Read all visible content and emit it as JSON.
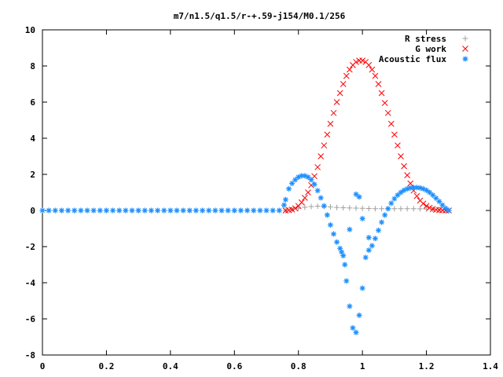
{
  "chart_data": {
    "type": "scatter",
    "title": "m7/n1.5/q1.5/r-+.59-j154/M0.1/256",
    "xlabel": "",
    "ylabel": "",
    "xlim": [
      0,
      1.4
    ],
    "ylim": [
      -8,
      10
    ],
    "xticks": [
      "0",
      "0.2",
      "0.4",
      "0.6",
      "0.8",
      "1",
      "1.2",
      "1.4"
    ],
    "yticks": [
      "-8",
      "-6",
      "-4",
      "-2",
      "0",
      "2",
      "4",
      "6",
      "8",
      "10"
    ],
    "grid": false,
    "legend_position": "top-right",
    "series": [
      {
        "name": "R stress",
        "marker": "+",
        "color": "#a0a0a0",
        "points": [
          [
            0.0,
            0
          ],
          [
            0.1,
            0
          ],
          [
            0.2,
            0
          ],
          [
            0.3,
            0
          ],
          [
            0.4,
            0
          ],
          [
            0.5,
            0
          ],
          [
            0.6,
            0
          ],
          [
            0.7,
            0
          ],
          [
            0.76,
            0
          ],
          [
            0.78,
            0.05
          ],
          [
            0.8,
            0.12
          ],
          [
            0.82,
            0.18
          ],
          [
            0.84,
            0.22
          ],
          [
            0.86,
            0.24
          ],
          [
            0.88,
            0.23
          ],
          [
            0.9,
            0.2
          ],
          [
            0.92,
            0.17
          ],
          [
            0.94,
            0.15
          ],
          [
            0.96,
            0.14
          ],
          [
            0.98,
            0.13
          ],
          [
            1.0,
            0.12
          ],
          [
            1.02,
            0.11
          ],
          [
            1.04,
            0.1
          ],
          [
            1.06,
            0.1
          ],
          [
            1.08,
            0.1
          ],
          [
            1.1,
            0.1
          ],
          [
            1.12,
            0.1
          ],
          [
            1.14,
            0.1
          ],
          [
            1.16,
            0.1
          ],
          [
            1.18,
            0.09
          ],
          [
            1.2,
            0.08
          ],
          [
            1.22,
            0.06
          ],
          [
            1.24,
            0.04
          ],
          [
            1.26,
            0.02
          ],
          [
            1.27,
            0
          ]
        ]
      },
      {
        "name": "G work",
        "marker": "x",
        "color": "#ff0000",
        "points": [
          [
            0.76,
            0
          ],
          [
            0.77,
            0.02
          ],
          [
            0.78,
            0.05
          ],
          [
            0.79,
            0.12
          ],
          [
            0.8,
            0.25
          ],
          [
            0.81,
            0.45
          ],
          [
            0.82,
            0.7
          ],
          [
            0.83,
            1.0
          ],
          [
            0.84,
            1.4
          ],
          [
            0.85,
            1.9
          ],
          [
            0.86,
            2.4
          ],
          [
            0.87,
            3.0
          ],
          [
            0.88,
            3.6
          ],
          [
            0.89,
            4.2
          ],
          [
            0.9,
            4.8
          ],
          [
            0.91,
            5.4
          ],
          [
            0.92,
            6.0
          ],
          [
            0.93,
            6.5
          ],
          [
            0.94,
            7.0
          ],
          [
            0.95,
            7.45
          ],
          [
            0.96,
            7.8
          ],
          [
            0.97,
            8.05
          ],
          [
            0.98,
            8.22
          ],
          [
            0.99,
            8.3
          ],
          [
            1.0,
            8.3
          ],
          [
            1.01,
            8.22
          ],
          [
            1.02,
            8.05
          ],
          [
            1.03,
            7.8
          ],
          [
            1.04,
            7.45
          ],
          [
            1.05,
            7.0
          ],
          [
            1.06,
            6.5
          ],
          [
            1.07,
            5.95
          ],
          [
            1.08,
            5.4
          ],
          [
            1.09,
            4.8
          ],
          [
            1.1,
            4.2
          ],
          [
            1.11,
            3.6
          ],
          [
            1.12,
            3.0
          ],
          [
            1.13,
            2.45
          ],
          [
            1.14,
            1.95
          ],
          [
            1.15,
            1.5
          ],
          [
            1.16,
            1.1
          ],
          [
            1.17,
            0.8
          ],
          [
            1.18,
            0.55
          ],
          [
            1.19,
            0.38
          ],
          [
            1.2,
            0.25
          ],
          [
            1.21,
            0.15
          ],
          [
            1.22,
            0.08
          ],
          [
            1.23,
            0.04
          ],
          [
            1.24,
            0.02
          ],
          [
            1.25,
            0.01
          ],
          [
            1.26,
            0.0
          ],
          [
            1.27,
            0.0
          ]
        ]
      },
      {
        "name": "Acoustic flux",
        "marker": "*",
        "color": "#1e90ff",
        "points": [
          [
            0.0,
            0
          ],
          [
            0.02,
            0
          ],
          [
            0.04,
            0
          ],
          [
            0.06,
            0
          ],
          [
            0.08,
            0
          ],
          [
            0.1,
            0
          ],
          [
            0.12,
            0
          ],
          [
            0.14,
            0
          ],
          [
            0.16,
            0
          ],
          [
            0.18,
            0
          ],
          [
            0.2,
            0
          ],
          [
            0.22,
            0
          ],
          [
            0.24,
            0
          ],
          [
            0.26,
            0
          ],
          [
            0.28,
            0
          ],
          [
            0.3,
            0
          ],
          [
            0.32,
            0
          ],
          [
            0.34,
            0
          ],
          [
            0.36,
            0
          ],
          [
            0.38,
            0
          ],
          [
            0.4,
            0
          ],
          [
            0.42,
            0
          ],
          [
            0.44,
            0
          ],
          [
            0.46,
            0
          ],
          [
            0.48,
            0
          ],
          [
            0.5,
            0
          ],
          [
            0.52,
            0
          ],
          [
            0.54,
            0
          ],
          [
            0.56,
            0
          ],
          [
            0.58,
            0
          ],
          [
            0.6,
            0
          ],
          [
            0.62,
            0
          ],
          [
            0.64,
            0
          ],
          [
            0.66,
            0
          ],
          [
            0.68,
            0
          ],
          [
            0.7,
            0
          ],
          [
            0.72,
            0
          ],
          [
            0.74,
            0
          ],
          [
            0.755,
            0.3
          ],
          [
            0.76,
            0.6
          ],
          [
            0.77,
            1.2
          ],
          [
            0.78,
            1.5
          ],
          [
            0.79,
            1.7
          ],
          [
            0.8,
            1.85
          ],
          [
            0.81,
            1.92
          ],
          [
            0.82,
            1.92
          ],
          [
            0.83,
            1.85
          ],
          [
            0.84,
            1.7
          ],
          [
            0.85,
            1.45
          ],
          [
            0.86,
            1.1
          ],
          [
            0.87,
            0.7
          ],
          [
            0.88,
            0.25
          ],
          [
            0.89,
            -0.25
          ],
          [
            0.9,
            -0.8
          ],
          [
            0.91,
            -1.3
          ],
          [
            0.92,
            -1.75
          ],
          [
            0.93,
            -2.1
          ],
          [
            0.935,
            -2.3
          ],
          [
            0.94,
            -2.5
          ],
          [
            0.945,
            -3.0
          ],
          [
            0.95,
            -3.9
          ],
          [
            0.96,
            -5.3
          ],
          [
            0.97,
            -6.5
          ],
          [
            0.98,
            -6.75
          ],
          [
            0.99,
            -5.8
          ],
          [
            1.0,
            -4.3
          ],
          [
            1.01,
            -2.6
          ],
          [
            1.02,
            -2.2
          ],
          [
            1.03,
            -1.95
          ],
          [
            1.04,
            -1.55
          ],
          [
            1.05,
            -1.1
          ],
          [
            1.06,
            -0.65
          ],
          [
            1.07,
            -0.25
          ],
          [
            1.08,
            0.1
          ],
          [
            1.09,
            0.4
          ],
          [
            1.1,
            0.65
          ],
          [
            1.11,
            0.85
          ],
          [
            1.12,
            1.0
          ],
          [
            1.13,
            1.12
          ],
          [
            1.14,
            1.2
          ],
          [
            1.15,
            1.25
          ],
          [
            1.16,
            1.27
          ],
          [
            1.17,
            1.27
          ],
          [
            1.18,
            1.25
          ],
          [
            1.19,
            1.2
          ],
          [
            1.2,
            1.12
          ],
          [
            1.21,
            1.0
          ],
          [
            1.22,
            0.85
          ],
          [
            1.23,
            0.68
          ],
          [
            1.24,
            0.5
          ],
          [
            1.25,
            0.3
          ],
          [
            1.26,
            0.12
          ],
          [
            1.27,
            0.0
          ],
          [
            0.98,
            0.9
          ],
          [
            0.99,
            0.75
          ],
          [
            1.0,
            -0.45
          ],
          [
            0.96,
            -1.05
          ],
          [
            1.02,
            -1.5
          ]
        ]
      }
    ]
  }
}
